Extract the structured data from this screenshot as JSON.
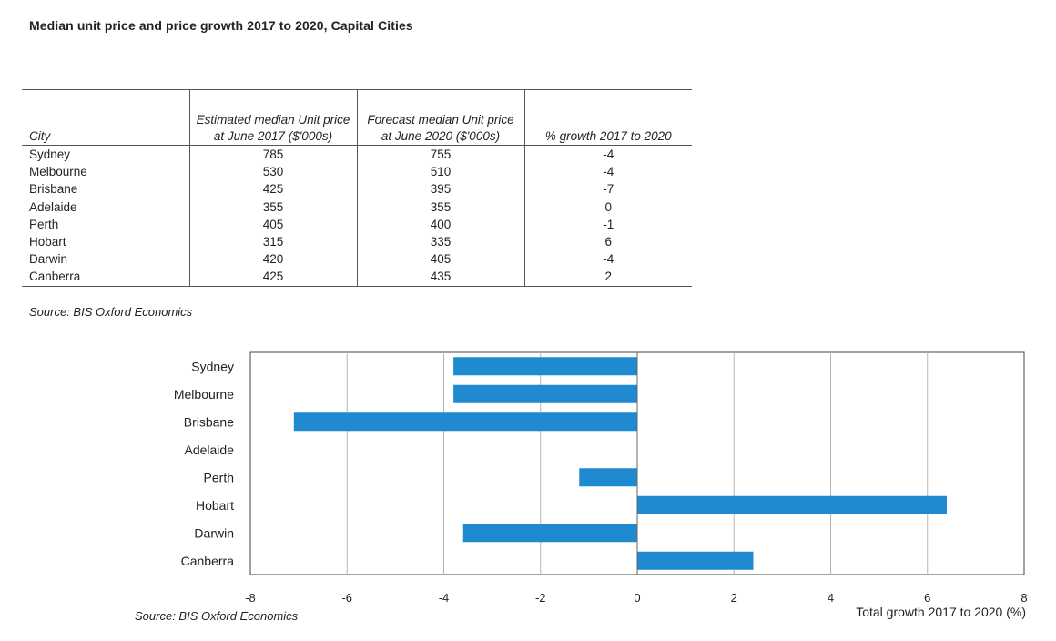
{
  "title": "Median unit price and price growth 2017 to 2020, Capital Cities",
  "table": {
    "headers": [
      "City",
      "Estimated median Unit price at June 2017 ($'000s)",
      "Forecast median Unit price at June 2020 ($'000s)",
      "% growth 2017 to 2020"
    ],
    "rows": [
      [
        "Sydney",
        "785",
        "755",
        "-4"
      ],
      [
        "Melbourne",
        "530",
        "510",
        "-4"
      ],
      [
        "Brisbane",
        "425",
        "395",
        "-7"
      ],
      [
        "Adelaide",
        "355",
        "355",
        "0"
      ],
      [
        "Perth",
        "405",
        "400",
        "-1"
      ],
      [
        "Hobart",
        "315",
        "335",
        "6"
      ],
      [
        "Darwin",
        "420",
        "405",
        "-4"
      ],
      [
        "Canberra",
        "425",
        "435",
        "2"
      ]
    ]
  },
  "table_source": "Source: BIS Oxford Economics",
  "chart_data": {
    "type": "bar",
    "orientation": "horizontal",
    "categories": [
      "Sydney",
      "Melbourne",
      "Brisbane",
      "Adelaide",
      "Perth",
      "Hobart",
      "Darwin",
      "Canberra"
    ],
    "values": [
      -3.8,
      -3.8,
      -7.1,
      0,
      -1.2,
      6.4,
      -3.6,
      2.4
    ],
    "xlabel": "Total growth 2017 to 2020 (%)",
    "xlim": [
      -8,
      8
    ],
    "xticks": [
      -8,
      -6,
      -4,
      -2,
      0,
      2,
      4,
      6,
      8
    ],
    "grid": true,
    "bar_color": "#1f8ad0"
  },
  "chart_source": "Source: BIS Oxford Economics"
}
